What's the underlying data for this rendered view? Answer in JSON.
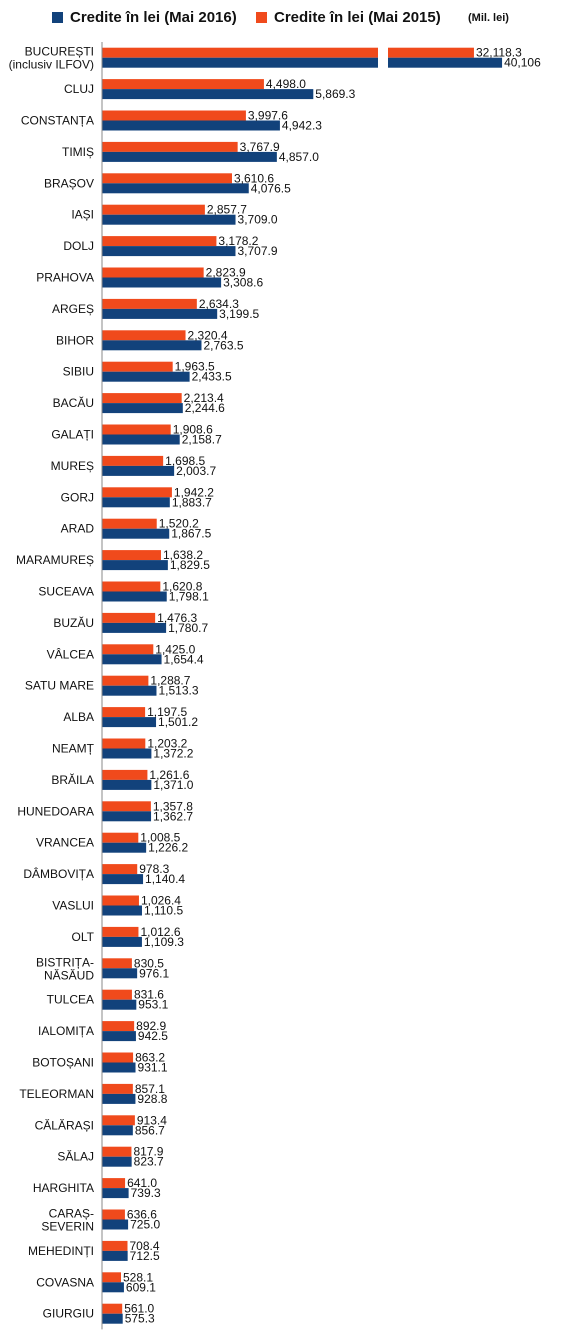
{
  "legend": {
    "s2016": "Credite în lei (Mai 2016)",
    "s2015": "Credite în lei (Mai 2015)",
    "unit": "(Mil. lei)"
  },
  "chart_data": {
    "type": "bar",
    "orientation": "horizontal",
    "title": "",
    "xlabel": "",
    "ylabel": "",
    "unit": "(Mil. lei)",
    "legend_position": "top",
    "grid": false,
    "categories": [
      "BUCUREȘTI\n(inclusiv ILFOV)",
      "CLUJ",
      "CONSTANȚA",
      "TIMIȘ",
      "BRAȘOV",
      "IAȘI",
      "DOLJ",
      "PRAHOVA",
      "ARGEȘ",
      "BIHOR",
      "SIBIU",
      "BACĂU",
      "GALAȚI",
      "MUREȘ",
      "GORJ",
      "ARAD",
      "MARAMUREȘ",
      "SUCEAVA",
      "BUZĂU",
      "VÂLCEA",
      "SATU MARE",
      "ALBA",
      "NEAMȚ",
      "BRĂILA",
      "HUNEDOARA",
      "VRANCEA",
      "DÂMBOVIȚA",
      "VASLUI",
      "OLT",
      "BISTRIȚA-\nNĂSĂUD",
      "TULCEA",
      "IALOMIȚA",
      "BOTOȘANI",
      "TELEORMAN",
      "CĂLĂRAȘI",
      "SĂLAJ",
      "HARGHITA",
      "CARAȘ-\nSEVERIN",
      "MEHEDINȚI",
      "COVASNA",
      "GIURGIU"
    ],
    "series": [
      {
        "name": "Credite în lei (Mai 2015)",
        "color": "#f04a1c",
        "values": [
          32118.3,
          4498.0,
          3997.6,
          3767.9,
          3610.6,
          2857.7,
          3178.2,
          2823.9,
          2634.3,
          2320.4,
          1963.5,
          2213.4,
          1908.6,
          1698.5,
          1942.2,
          1520.2,
          1638.2,
          1620.8,
          1476.3,
          1425.0,
          1288.7,
          1197.5,
          1203.2,
          1261.6,
          1357.8,
          1008.5,
          978.3,
          1026.4,
          1012.6,
          830.5,
          831.6,
          892.9,
          863.2,
          857.1,
          913.4,
          817.9,
          641.0,
          636.6,
          708.4,
          528.1,
          561.0
        ],
        "labels": [
          "32,118.3",
          "4,498.0",
          "3,997.6",
          "3,767.9",
          "3,610.6",
          "2,857.7",
          "3,178.2",
          "2,823.9",
          "2,634.3",
          "2,320.4",
          "1,963.5",
          "2,213.4",
          "1,908.6",
          "1,698.5",
          "1,942.2",
          "1,520.2",
          "1,638.2",
          "1,620.8",
          "1,476.3",
          "1,425.0",
          "1,288.7",
          "1,197.5",
          "1,203.2",
          "1,261.6",
          "1,357.8",
          "1,008.5",
          "978.3",
          "1,026.4",
          "1,012.6",
          "830.5",
          "831.6",
          "892.9",
          "863.2",
          "857.1",
          "913.4",
          "817.9",
          "641.0",
          "636.6",
          "708.4",
          "528.1",
          "561.0"
        ]
      },
      {
        "name": "Credite în lei (Mai 2016)",
        "color": "#12427b",
        "values": [
          40106,
          5869.3,
          4942.3,
          4857.0,
          4076.5,
          3709.0,
          3707.9,
          3308.6,
          3199.5,
          2763.5,
          2433.5,
          2244.6,
          2158.7,
          2003.7,
          1883.7,
          1867.5,
          1829.5,
          1798.1,
          1780.7,
          1654.4,
          1513.3,
          1501.2,
          1372.2,
          1371.0,
          1362.7,
          1226.2,
          1140.4,
          1110.5,
          1109.3,
          976.1,
          953.1,
          942.5,
          931.1,
          928.8,
          856.7,
          823.7,
          739.3,
          725.0,
          712.5,
          609.1,
          575.3
        ],
        "labels": [
          "40,106",
          "5,869.3",
          "4,942.3",
          "4,857.0",
          "4,076.5",
          "3,709.0",
          "3,707.9",
          "3,308.6",
          "3,199.5",
          "2,763.5",
          "2,433.5",
          "2,244.6",
          "2,158.7",
          "2,003.7",
          "1,883.7",
          "1,867.5",
          "1,829.5",
          "1,798.1",
          "1,780.7",
          "1,654.4",
          "1,513.3",
          "1,501.2",
          "1,372.2",
          "1,371.0",
          "1,362.7",
          "1,226.2",
          "1,140.4",
          "1,110.5",
          "1,109.3",
          "976.1",
          "953.1",
          "942.5",
          "931.1",
          "928.8",
          "856.7",
          "823.7",
          "739.3",
          "725.0",
          "712.5",
          "609.1",
          "575.3"
        ]
      }
    ],
    "axis_break": true
  }
}
